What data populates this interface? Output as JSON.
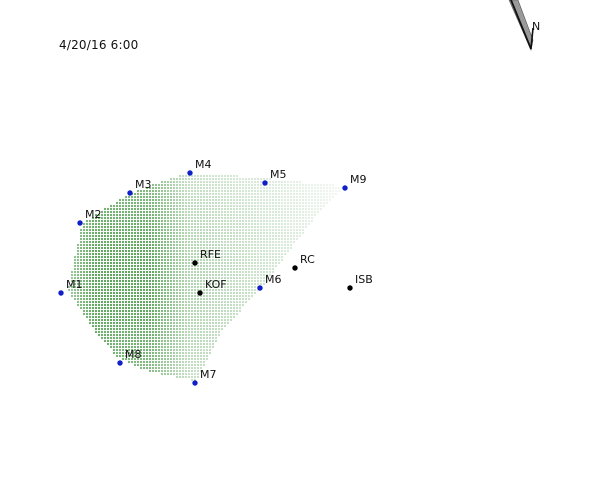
{
  "timestamp": "4/20/16 6:00",
  "north_arrow": {
    "label": "N",
    "icon": "north-arrow-icon"
  },
  "colors": {
    "monitor_station": "#1020c8",
    "site": "#000000",
    "plume": "#2e8b2e"
  },
  "stations": [
    {
      "id": "M1",
      "label": "M1",
      "type": "monitor"
    },
    {
      "id": "M2",
      "label": "M2",
      "type": "monitor"
    },
    {
      "id": "M3",
      "label": "M3",
      "type": "monitor"
    },
    {
      "id": "M4",
      "label": "M4",
      "type": "monitor"
    },
    {
      "id": "M5",
      "label": "M5",
      "type": "monitor"
    },
    {
      "id": "M6",
      "label": "M6",
      "type": "monitor"
    },
    {
      "id": "M7",
      "label": "M7",
      "type": "monitor"
    },
    {
      "id": "M8",
      "label": "M8",
      "type": "monitor"
    },
    {
      "id": "M9",
      "label": "M9",
      "type": "monitor"
    },
    {
      "id": "RFE",
      "label": "RFE",
      "type": "site"
    },
    {
      "id": "KOF",
      "label": "KOF",
      "type": "site"
    },
    {
      "id": "RC",
      "label": "RC",
      "type": "site"
    },
    {
      "id": "ISB",
      "label": "ISB",
      "type": "site"
    }
  ]
}
